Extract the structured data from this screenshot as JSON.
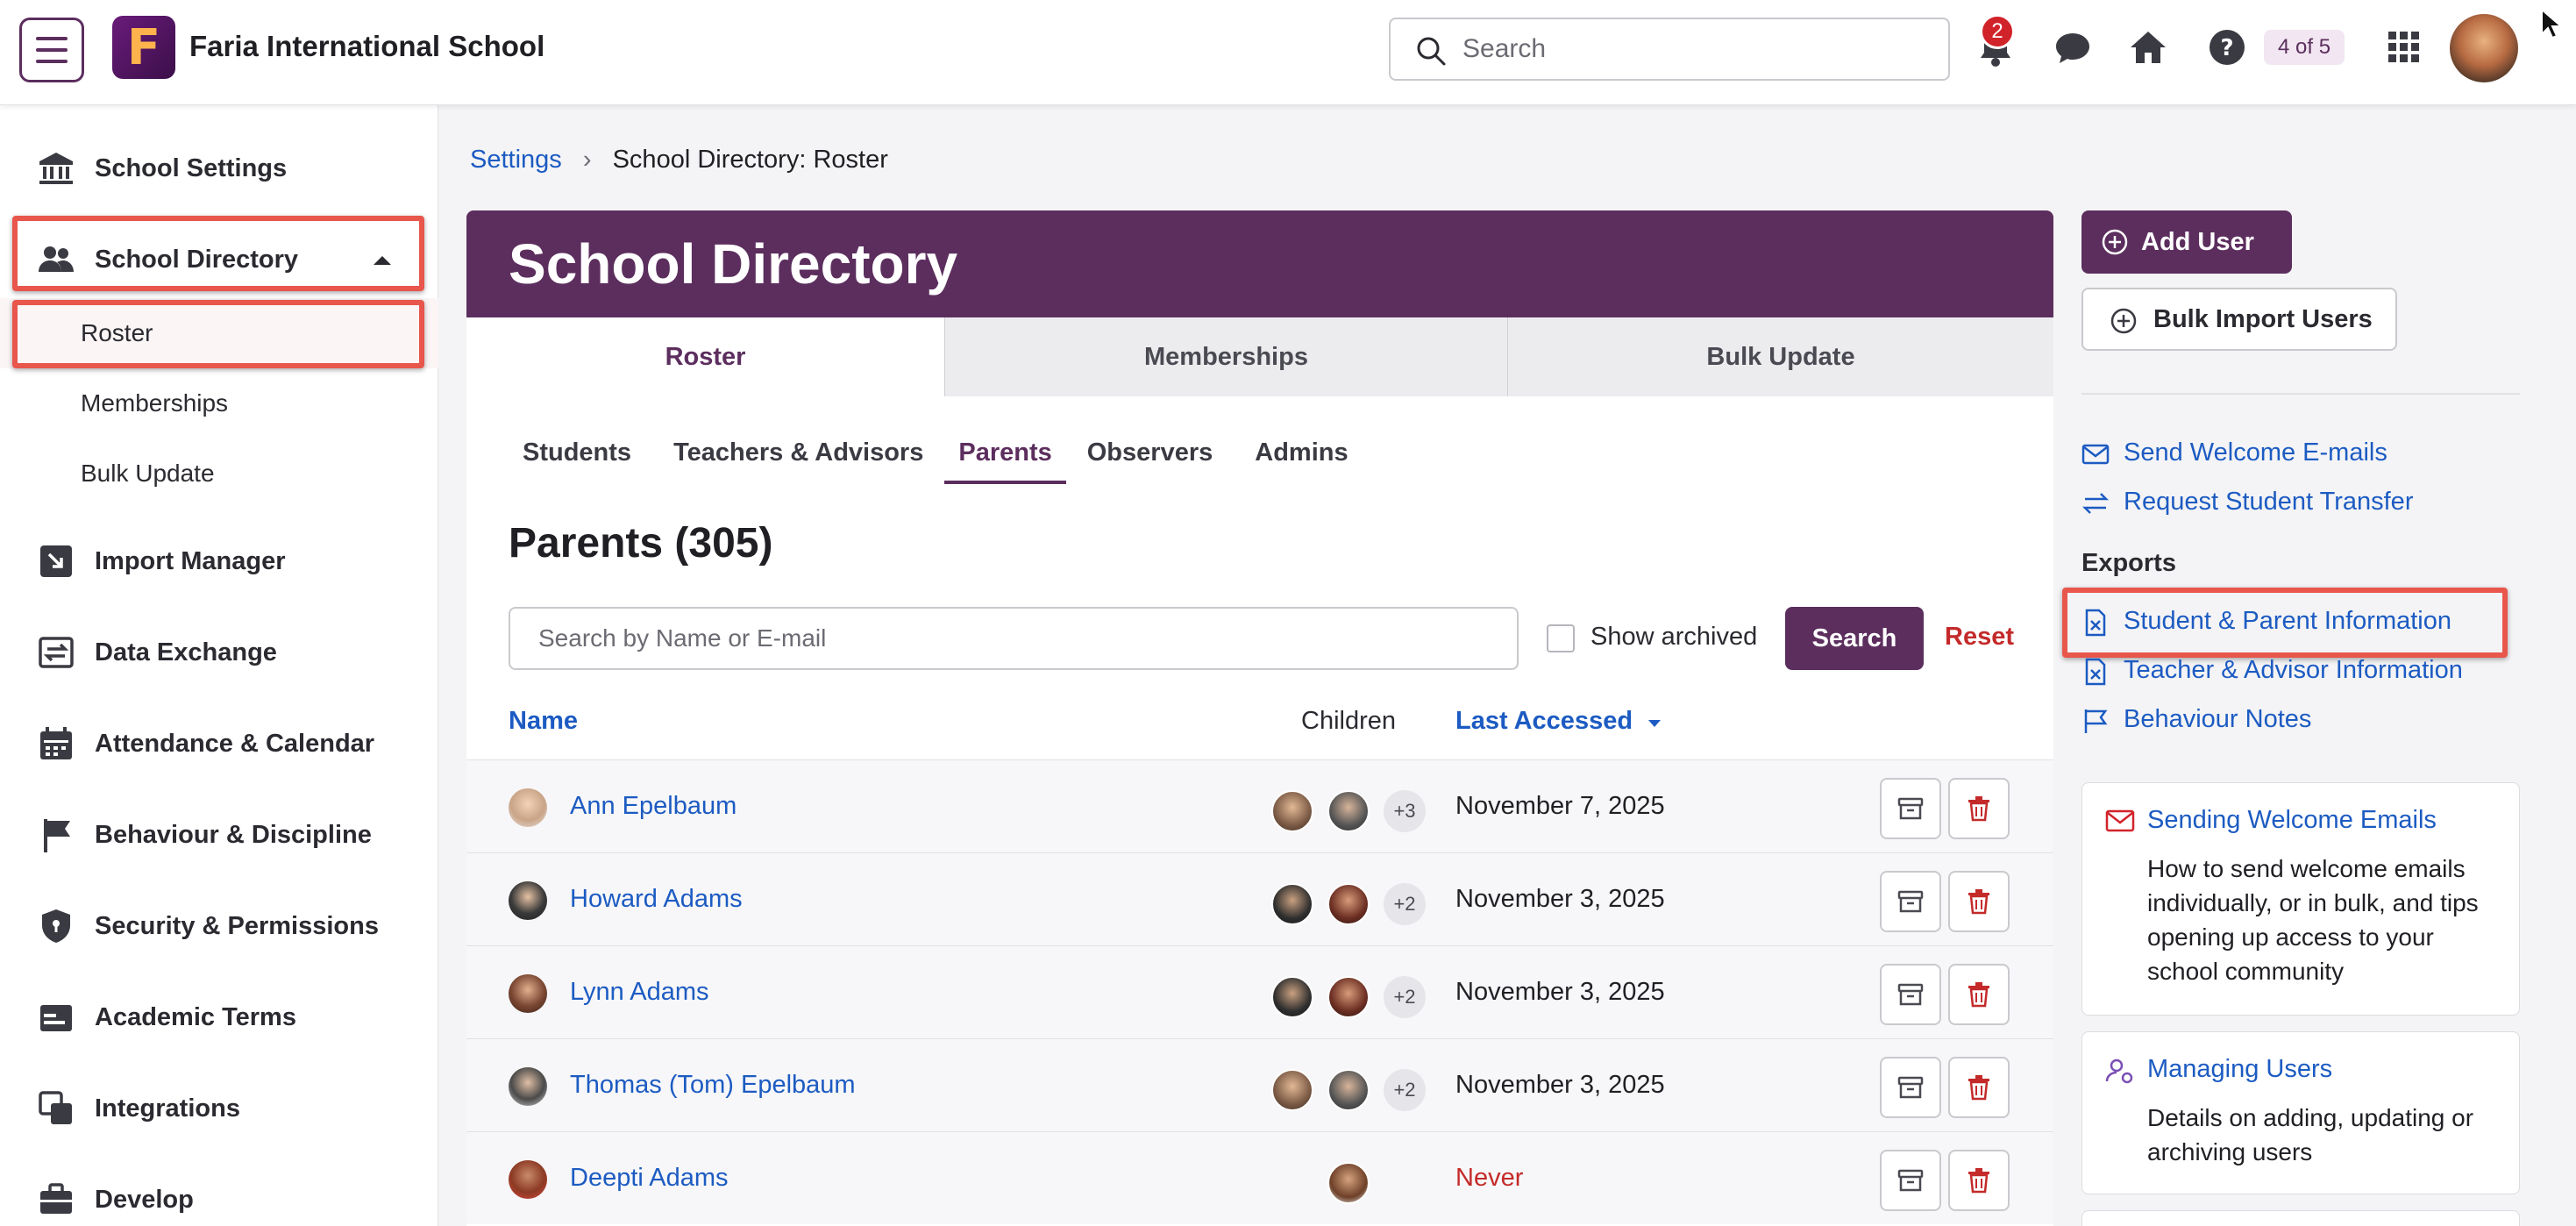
{
  "header": {
    "school_name": "Faria International School",
    "logo_letter": "F",
    "search_placeholder": "Search",
    "notification_count": "2",
    "pager": "4 of 5"
  },
  "sidebar": {
    "school_settings": "School Settings",
    "school_directory": "School Directory",
    "sub_items": [
      "Roster",
      "Memberships",
      "Bulk Update"
    ],
    "items": [
      "Import Manager",
      "Data Exchange",
      "Attendance & Calendar",
      "Behaviour & Discipline",
      "Security & Permissions",
      "Academic Terms",
      "Integrations",
      "Develop"
    ]
  },
  "breadcrumb": {
    "root": "Settings",
    "current": "School Directory: Roster"
  },
  "main": {
    "title": "School Directory",
    "tabs": [
      "Roster",
      "Memberships",
      "Bulk Update"
    ],
    "sub_tabs": [
      "Students",
      "Teachers & Advisors",
      "Parents",
      "Observers",
      "Admins"
    ],
    "heading": "Parents (305)",
    "search_placeholder": "Search by Name or E-mail",
    "show_archived": "Show archived",
    "search_button": "Search",
    "reset_link": "Reset",
    "columns": {
      "name": "Name",
      "children": "Children",
      "last_accessed": "Last Accessed"
    },
    "rows": [
      {
        "name": "Ann Epelbaum",
        "more": "+3",
        "date": "November 7, 2025"
      },
      {
        "name": "Howard Adams",
        "more": "+2",
        "date": "November 3, 2025"
      },
      {
        "name": "Lynn Adams",
        "more": "+2",
        "date": "November 3, 2025"
      },
      {
        "name": "Thomas (Tom) Epelbaum",
        "more": "+2",
        "date": "November 3, 2025"
      },
      {
        "name": "Deepti Adams",
        "more": "",
        "date": "Never"
      }
    ]
  },
  "right": {
    "add_user": "Add User",
    "bulk_import": "Bulk Import Users",
    "send_welcome": "Send Welcome E-mails",
    "request_transfer": "Request Student Transfer",
    "exports_heading": "Exports",
    "export_links": [
      "Student & Parent Information",
      "Teacher & Advisor Information",
      "Behaviour Notes"
    ],
    "cards": [
      {
        "title": "Sending Welcome Emails",
        "text": "How to send welcome emails individually, or in bulk, and tips opening up access to your school community"
      },
      {
        "title": "Managing Users",
        "text": "Details on adding, updating or archiving users"
      }
    ]
  },
  "colors": {
    "brand_purple": "#5c2e5e",
    "link_blue": "#1c5bc2",
    "danger_red": "#c42a2a",
    "highlight": "#e8564c"
  }
}
